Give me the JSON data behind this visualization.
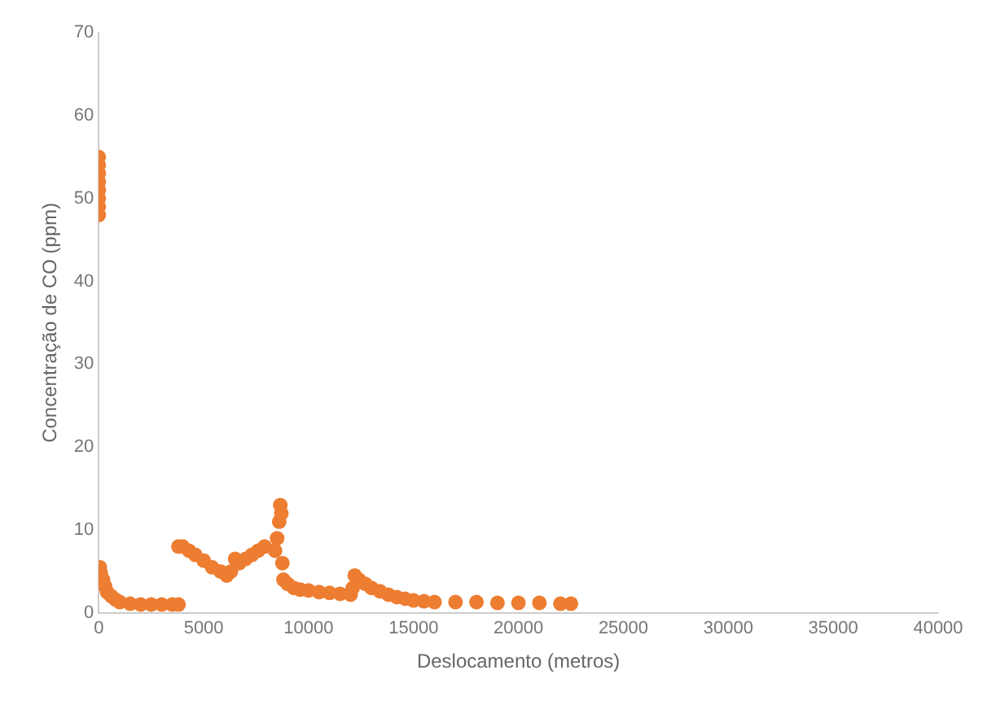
{
  "chart_data": {
    "type": "scatter",
    "xlabel": "Deslocamento (metros)",
    "ylabel": "Concentração de CO (ppm)",
    "xlim": [
      0,
      40000
    ],
    "xticks": [
      0,
      5000,
      10000,
      15000,
      20000,
      25000,
      30000,
      35000,
      40000
    ],
    "ylim": [
      0,
      70
    ],
    "yticks": [
      0,
      10,
      20,
      30,
      40,
      50,
      60,
      70
    ],
    "grid": false,
    "legend": false,
    "marker": "circle",
    "series": [
      {
        "color": "#ed7d31",
        "x": [
          0,
          0,
          0,
          0,
          0,
          0,
          0,
          0,
          50,
          100,
          200,
          300,
          400,
          600,
          800,
          1000,
          1500,
          2000,
          2500,
          3000,
          3500,
          3800,
          3800,
          4000,
          4300,
          4600,
          5000,
          5400,
          5800,
          6100,
          6300,
          6500,
          6700,
          7000,
          7300,
          7600,
          7900,
          8400,
          8500,
          8600,
          8650,
          8700,
          8750,
          8800,
          9000,
          9300,
          9600,
          10000,
          10500,
          11000,
          11500,
          12000,
          12100,
          12200,
          12400,
          12700,
          13000,
          13400,
          13800,
          14200,
          14600,
          15000,
          15500,
          16000,
          17000,
          18000,
          19000,
          20000,
          21000,
          22000,
          22500
        ],
        "values": [
          48,
          49,
          50,
          51,
          52,
          53,
          54,
          55,
          5.5,
          4.8,
          4,
          3.2,
          2.5,
          2,
          1.6,
          1.3,
          1.1,
          1,
          1,
          1,
          1,
          1,
          8,
          8,
          7.5,
          7,
          6.3,
          5.5,
          5,
          4.5,
          5,
          6.5,
          6,
          6.5,
          7,
          7.5,
          8,
          7.5,
          9,
          11,
          13,
          12,
          6,
          4,
          3.5,
          3,
          2.8,
          2.7,
          2.5,
          2.4,
          2.3,
          2.2,
          3,
          4.5,
          4,
          3.5,
          3,
          2.6,
          2.2,
          1.9,
          1.7,
          1.5,
          1.4,
          1.3,
          1.3,
          1.3,
          1.2,
          1.2,
          1.2,
          1.1,
          1.1
        ]
      }
    ]
  }
}
